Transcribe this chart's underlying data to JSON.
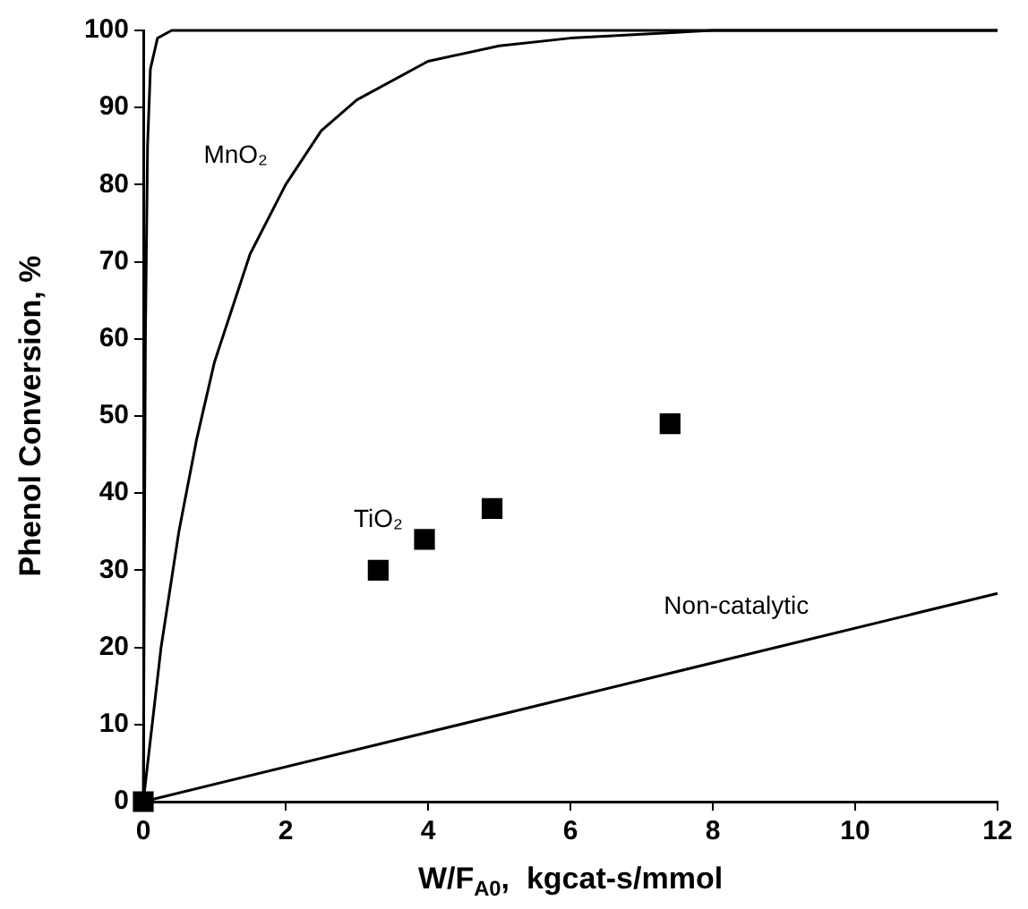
{
  "chart_data": {
    "type": "line",
    "xlabel": "W/F$_{A0}$,  kgcat-s/mmol",
    "ylabel": "Phenol Conversion, %",
    "xlim": [
      0,
      12
    ],
    "xticks": [
      0,
      2,
      4,
      6,
      8,
      10,
      12
    ],
    "ylim": [
      0,
      100
    ],
    "yticks": [
      0,
      10,
      20,
      30,
      40,
      50,
      60,
      70,
      80,
      90,
      100
    ],
    "grid": false,
    "legend": false,
    "series": [
      {
        "color": "#000000",
        "marker": "none",
        "x": [
          0,
          0.03,
          0.06,
          0.1,
          0.2,
          0.4,
          12
        ],
        "values": [
          0,
          60,
          85,
          95,
          99,
          100,
          100
        ]
      },
      {
        "name": "MnO₂",
        "color": "#000000",
        "marker": "none",
        "x": [
          0,
          0.25,
          0.5,
          0.75,
          1,
          1.5,
          2,
          2.5,
          3,
          4,
          5,
          6,
          8,
          12
        ],
        "values": [
          0,
          20,
          35,
          47,
          57,
          71,
          80,
          87,
          91,
          96,
          98,
          99,
          100,
          100
        ]
      },
      {
        "name": "TiO₂",
        "type": "scatter",
        "color": "#000000",
        "marker": "square",
        "x": [
          0,
          3.3,
          3.95,
          4.9,
          7.4
        ],
        "values": [
          0,
          30,
          34,
          38,
          49
        ]
      },
      {
        "name": "Non-catalytic",
        "color": "#000000",
        "marker": "none",
        "x": [
          0,
          12
        ],
        "values": [
          0,
          27
        ]
      }
    ]
  }
}
